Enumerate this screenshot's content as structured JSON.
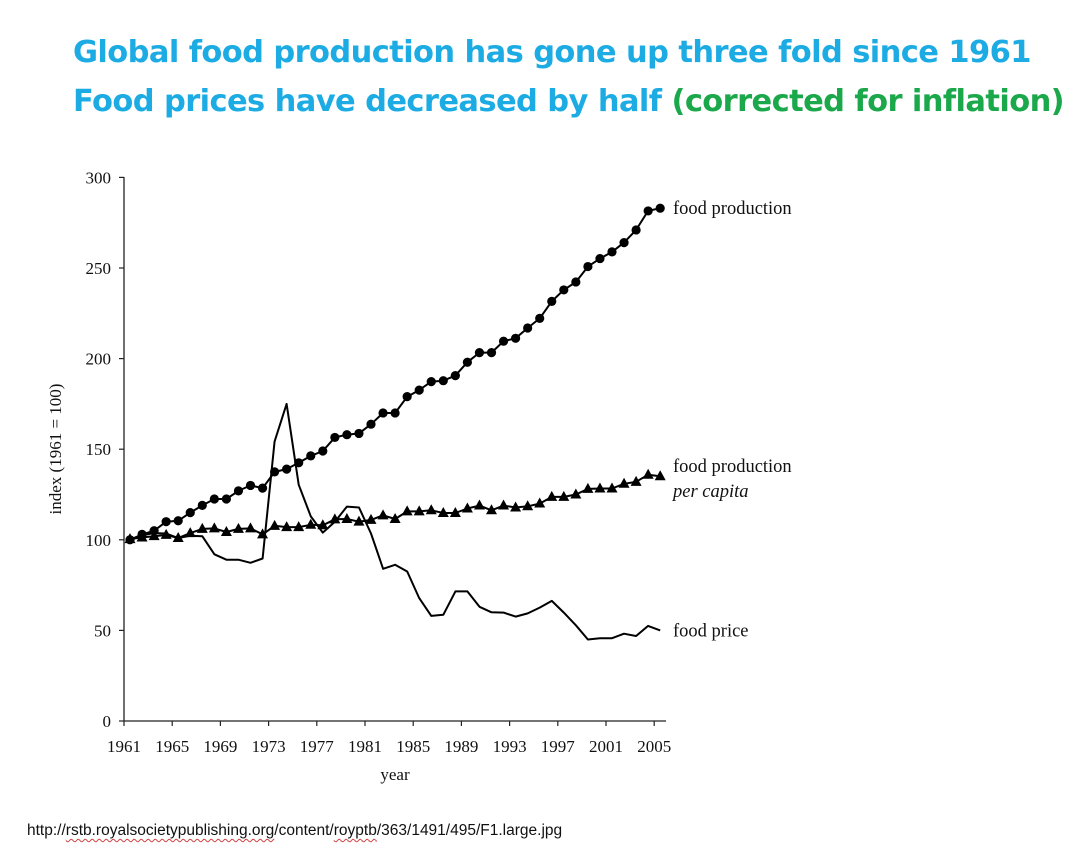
{
  "slide": {
    "title_line1": "Global food production has gone up three fold since 1961",
    "title_line2_main": "Food prices have decreased by half ",
    "title_line2_accent": "(corrected for inflation)",
    "colors": {
      "title": "#1CACE3",
      "accent": "#1AA84A"
    },
    "source_parts": [
      "http://",
      "rstb.royalsocietypublishing.org",
      "/content/",
      "royptb",
      "/363/1491/495/F1.large.jpg"
    ]
  },
  "chart_data": {
    "type": "line",
    "title": "",
    "xlabel": "year",
    "ylabel": "index (1961 = 100)",
    "xlim": [
      1961,
      2006.4
    ],
    "ylim": [
      0,
      300
    ],
    "x_ticks": [
      1961,
      1965,
      1969,
      1973,
      1977,
      1981,
      1985,
      1989,
      1993,
      1997,
      2001,
      2005
    ],
    "y_ticks": [
      0,
      50,
      100,
      150,
      200,
      250,
      300
    ],
    "grid": false,
    "legend": "inline-right",
    "x": [
      1961,
      1962,
      1963,
      1964,
      1965,
      1966,
      1967,
      1968,
      1969,
      1970,
      1971,
      1972,
      1973,
      1974,
      1975,
      1976,
      1977,
      1978,
      1979,
      1980,
      1981,
      1982,
      1983,
      1984,
      1985,
      1986,
      1987,
      1988,
      1989,
      1990,
      1991,
      1992,
      1993,
      1994,
      1995,
      1996,
      1997,
      1998,
      1999,
      2000,
      2001,
      2002,
      2003,
      2004,
      2005
    ],
    "series": [
      {
        "name": "food production",
        "label_lines": [
          "food production"
        ],
        "marker": "circle",
        "values": [
          100,
          103,
          105,
          110,
          110.5,
          115,
          119,
          122.5,
          122.5,
          127,
          130,
          128.5,
          137.5,
          139,
          142.5,
          146.3,
          149,
          156.5,
          158,
          158.7,
          163.8,
          170,
          170,
          179,
          182.6,
          187.3,
          187.8,
          190.6,
          198,
          203.3,
          203.3,
          209.6,
          211.2,
          216.9,
          222.2,
          231.6,
          237.9,
          242.3,
          250.8,
          255.2,
          258.9,
          264,
          271,
          281.5,
          283
        ]
      },
      {
        "name": "food production per capita",
        "label_lines": [
          "food production",
          "per capita"
        ],
        "marker": "triangle",
        "values": [
          100.4,
          101.3,
          102,
          102.7,
          101,
          103.7,
          106,
          106.3,
          104.3,
          106,
          106.3,
          103,
          107.7,
          107,
          107,
          108.3,
          108,
          111.3,
          111.5,
          110,
          111,
          113.5,
          111.5,
          115.7,
          115.7,
          116.3,
          114.8,
          114.8,
          117.3,
          118.9,
          116.3,
          118.9,
          117.8,
          118.5,
          120,
          123.7,
          123.7,
          125,
          128.1,
          128.3,
          128.3,
          130.9,
          132,
          135.9,
          135.1
        ]
      },
      {
        "name": "food price",
        "label_lines": [
          "food price"
        ],
        "marker": "none",
        "values": [
          100,
          102.6,
          103.7,
          103.5,
          101,
          102.2,
          102,
          92,
          89,
          89,
          87.3,
          89.7,
          154.3,
          175,
          130.4,
          112.9,
          104,
          110,
          118.3,
          117.8,
          103.5,
          84,
          86.2,
          82.5,
          67.8,
          58,
          58.6,
          71.5,
          71.5,
          63,
          60,
          59.8,
          57.6,
          59.4,
          62.6,
          66.3,
          59.8,
          52.8,
          45,
          45.7,
          45.7,
          48.2,
          46.9,
          52.5,
          50
        ]
      }
    ]
  }
}
